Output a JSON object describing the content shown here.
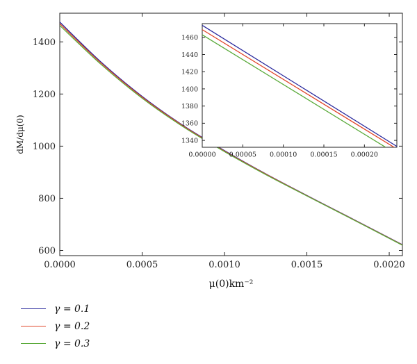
{
  "chart_data": [
    {
      "type": "line",
      "xlabel": "μ(0)km⁻²",
      "ylabel": "dM/dμ(0)",
      "xlim": [
        0,
        0.00208
      ],
      "ylim": [
        580,
        1510
      ],
      "x_ticks": [
        "0.0000",
        "0.0005",
        "0.0010",
        "0.0015",
        "0.0020"
      ],
      "y_ticks": [
        "600",
        "800",
        "1000",
        "1200",
        "1400"
      ],
      "legend_placement": "bottom-left",
      "series": [
        {
          "name": "γ = 0.1",
          "color": "#2b2b9e",
          "x": [
            0,
            0.00025,
            0.0005,
            0.00075,
            0.001,
            0.00125,
            0.0015,
            0.00175,
            0.00208
          ],
          "y": [
            1476,
            1323,
            1191,
            1079,
            983,
            894,
            811,
            730,
            622
          ]
        },
        {
          "name": "γ = 0.2",
          "color": "#e0462a",
          "x": [
            0,
            0.00025,
            0.0005,
            0.00075,
            0.001,
            0.00125,
            0.0015,
            0.00175,
            0.00208
          ],
          "y": [
            1470,
            1319,
            1188,
            1077,
            981,
            893,
            810,
            729,
            621
          ]
        },
        {
          "name": "γ = 0.3",
          "color": "#5aaa3a",
          "x": [
            0,
            0.00025,
            0.0005,
            0.00075,
            0.001,
            0.00125,
            0.0015,
            0.00175,
            0.00208
          ],
          "y": [
            1463,
            1314,
            1184,
            1074,
            979,
            891,
            809,
            728,
            620
          ]
        }
      ]
    },
    {
      "type": "line",
      "xlabel": "",
      "ylabel": "",
      "xlim": [
        0,
        0.00024
      ],
      "ylim": [
        1332,
        1476
      ],
      "x_ticks": [
        "0.00000",
        "0.00005",
        "0.00010",
        "0.00015",
        "0.00020"
      ],
      "y_ticks": [
        "1340",
        "1360",
        "1380",
        "1400",
        "1420",
        "1440",
        "1460"
      ],
      "series": [
        {
          "color": "#2b2b9e",
          "x": [
            0,
            0.00024
          ],
          "y": [
            1474,
            1333
          ]
        },
        {
          "color": "#e0462a",
          "x": [
            0,
            0.00024
          ],
          "y": [
            1469,
            1330
          ]
        },
        {
          "color": "#5aaa3a",
          "x": [
            0,
            0.00024
          ],
          "y": [
            1463,
            1324
          ]
        }
      ]
    }
  ]
}
